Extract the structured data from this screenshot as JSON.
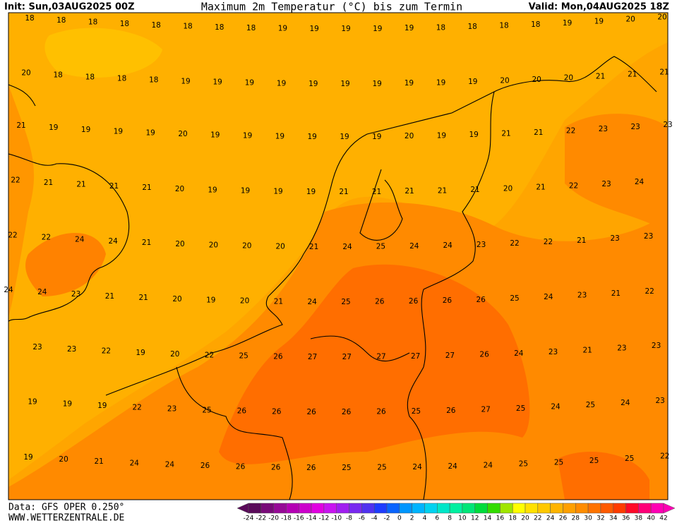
{
  "header": {
    "init": "Init: Sun,03AUG2025 00Z",
    "title": "Maximum 2m Temperatur (°C) bis zum Termin",
    "valid": "Valid: Mon,04AUG2025 18Z"
  },
  "footer": {
    "data": "Data: GFS OPER 0.250°",
    "site": "WWW.WETTERZENTRALE.DE"
  },
  "grid": {
    "rows": [
      [
        18,
        18,
        18,
        18,
        18,
        18,
        18,
        18,
        19,
        19,
        19,
        19,
        19,
        18,
        18,
        18,
        18,
        19,
        19,
        20,
        20
      ],
      [
        20,
        18,
        18,
        18,
        18,
        19,
        19,
        19,
        19,
        19,
        19,
        19,
        19,
        19,
        19,
        20,
        20,
        20,
        21,
        21,
        21
      ],
      [
        21,
        19,
        19,
        19,
        19,
        20,
        19,
        19,
        19,
        19,
        19,
        19,
        20,
        19,
        19,
        21,
        21,
        22,
        23,
        23,
        23
      ],
      [
        22,
        21,
        21,
        21,
        21,
        20,
        19,
        19,
        19,
        19,
        21,
        21,
        21,
        21,
        21,
        20,
        21,
        22,
        23,
        24
      ],
      [
        22,
        22,
        24,
        24,
        21,
        20,
        20,
        20,
        20,
        21,
        24,
        25,
        24,
        24,
        23,
        22,
        22,
        21,
        23,
        23
      ],
      [
        24,
        24,
        23,
        21,
        21,
        20,
        19,
        20,
        21,
        24,
        25,
        26,
        26,
        26,
        26,
        25,
        24,
        23,
        21,
        22
      ],
      [
        23,
        23,
        22,
        19,
        20,
        22,
        25,
        26,
        27,
        27,
        27,
        27,
        27,
        26,
        24,
        23,
        21,
        23,
        23
      ],
      [
        19,
        19,
        19,
        22,
        23,
        25,
        26,
        26,
        26,
        26,
        26,
        25,
        26,
        27,
        25,
        24,
        25,
        24,
        23
      ],
      [
        19,
        20,
        21,
        24,
        24,
        26,
        26,
        26,
        26,
        25,
        25,
        24,
        24,
        24,
        25,
        25,
        25,
        25,
        22
      ]
    ]
  },
  "colorbar": {
    "ticks": [
      -24,
      -22,
      -20,
      -18,
      -16,
      -14,
      -12,
      -10,
      -8,
      -6,
      -4,
      -2,
      0,
      2,
      4,
      6,
      8,
      10,
      12,
      14,
      16,
      18,
      20,
      22,
      24,
      26,
      28,
      30,
      32,
      34,
      36,
      38,
      40,
      42
    ],
    "colors": [
      "#5a0a5a",
      "#780a78",
      "#960a96",
      "#b400b4",
      "#cc00cc",
      "#e100e1",
      "#c814f0",
      "#a01ef0",
      "#7828f0",
      "#5032f0",
      "#1e3cff",
      "#0a64ff",
      "#0096ff",
      "#00b4ff",
      "#00d2f0",
      "#00e6c8",
      "#00f0a0",
      "#00e678",
      "#00dc3c",
      "#32dc00",
      "#a0e600",
      "#ffff00",
      "#ffe100",
      "#ffc800",
      "#ffb400",
      "#ffa000",
      "#ff8c00",
      "#ff7300",
      "#ff5a00",
      "#ff3c00",
      "#ff0a28",
      "#ff0078",
      "#ff00b4"
    ]
  }
}
